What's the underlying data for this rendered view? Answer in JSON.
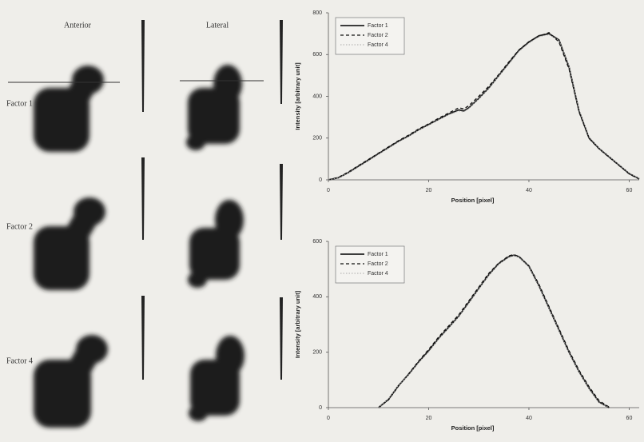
{
  "panel_labels": {
    "columns": [
      "Anterior",
      "Lateral"
    ],
    "rows": [
      "Factor 1",
      "Factor 2",
      "Factor 4"
    ]
  },
  "chart_data": [
    {
      "type": "line",
      "x_label": "Position [pixel]",
      "y_label": "Intensity [arbitrary unit]",
      "x": [
        0,
        2,
        4,
        6,
        8,
        10,
        12,
        14,
        16,
        18,
        20,
        22,
        24,
        26,
        27,
        28,
        30,
        32,
        34,
        36,
        38,
        40,
        42,
        44,
        46,
        48,
        50,
        52,
        54,
        56,
        58,
        60,
        62
      ],
      "series": [
        {
          "name": "Factor 1",
          "color": "#222222",
          "style": "solid",
          "values": [
            0,
            10,
            35,
            65,
            95,
            125,
            155,
            185,
            210,
            240,
            265,
            290,
            315,
            335,
            330,
            345,
            390,
            440,
            500,
            560,
            620,
            660,
            690,
            700,
            670,
            540,
            330,
            200,
            150,
            110,
            70,
            30,
            5
          ]
        },
        {
          "name": "Factor 2",
          "color": "#111111",
          "style": "dashed",
          "values": [
            0,
            12,
            38,
            68,
            98,
            128,
            158,
            188,
            214,
            244,
            268,
            295,
            320,
            345,
            340,
            355,
            400,
            448,
            505,
            565,
            622,
            662,
            688,
            705,
            660,
            530,
            325,
            198,
            148,
            108,
            68,
            28,
            4
          ]
        },
        {
          "name": "Factor 4",
          "color": "#aaaaaa",
          "style": "dotted",
          "values": [
            0,
            9,
            33,
            62,
            92,
            122,
            152,
            182,
            208,
            238,
            262,
            288,
            312,
            330,
            325,
            342,
            388,
            438,
            498,
            555,
            615,
            655,
            685,
            695,
            668,
            545,
            335,
            205,
            152,
            112,
            72,
            32,
            6
          ]
        }
      ],
      "xlim": [
        0,
        62
      ],
      "ylim": [
        0,
        800
      ],
      "xticks": [
        0,
        20,
        40,
        60
      ],
      "yticks": [
        0,
        200,
        400,
        600,
        800
      ]
    },
    {
      "type": "line",
      "x_label": "Position [pixel]",
      "y_label": "Intensity [arbitrary unit]",
      "x": [
        10,
        12,
        14,
        16,
        18,
        20,
        22,
        24,
        26,
        28,
        30,
        32,
        34,
        36,
        37,
        38,
        40,
        42,
        44,
        46,
        48,
        50,
        52,
        54,
        56
      ],
      "series": [
        {
          "name": "Factor 1",
          "color": "#222222",
          "style": "solid",
          "values": [
            0,
            30,
            80,
            120,
            165,
            205,
            250,
            290,
            330,
            380,
            430,
            480,
            520,
            545,
            550,
            545,
            510,
            440,
            360,
            280,
            200,
            130,
            70,
            20,
            0
          ]
        },
        {
          "name": "Factor 2",
          "color": "#111111",
          "style": "dashed",
          "values": [
            0,
            28,
            78,
            122,
            168,
            210,
            255,
            295,
            335,
            385,
            435,
            485,
            522,
            548,
            552,
            546,
            512,
            445,
            365,
            285,
            205,
            135,
            75,
            25,
            2
          ]
        },
        {
          "name": "Factor 4",
          "color": "#aaaaaa",
          "style": "dotted",
          "values": [
            0,
            32,
            82,
            118,
            162,
            202,
            248,
            288,
            328,
            378,
            428,
            478,
            518,
            543,
            548,
            544,
            508,
            438,
            358,
            278,
            198,
            128,
            68,
            18,
            0
          ]
        }
      ],
      "xlim": [
        0,
        62
      ],
      "ylim": [
        0,
        600
      ],
      "xticks": [
        0,
        20,
        40,
        60
      ],
      "yticks": [
        0,
        200,
        400,
        600
      ]
    }
  ]
}
